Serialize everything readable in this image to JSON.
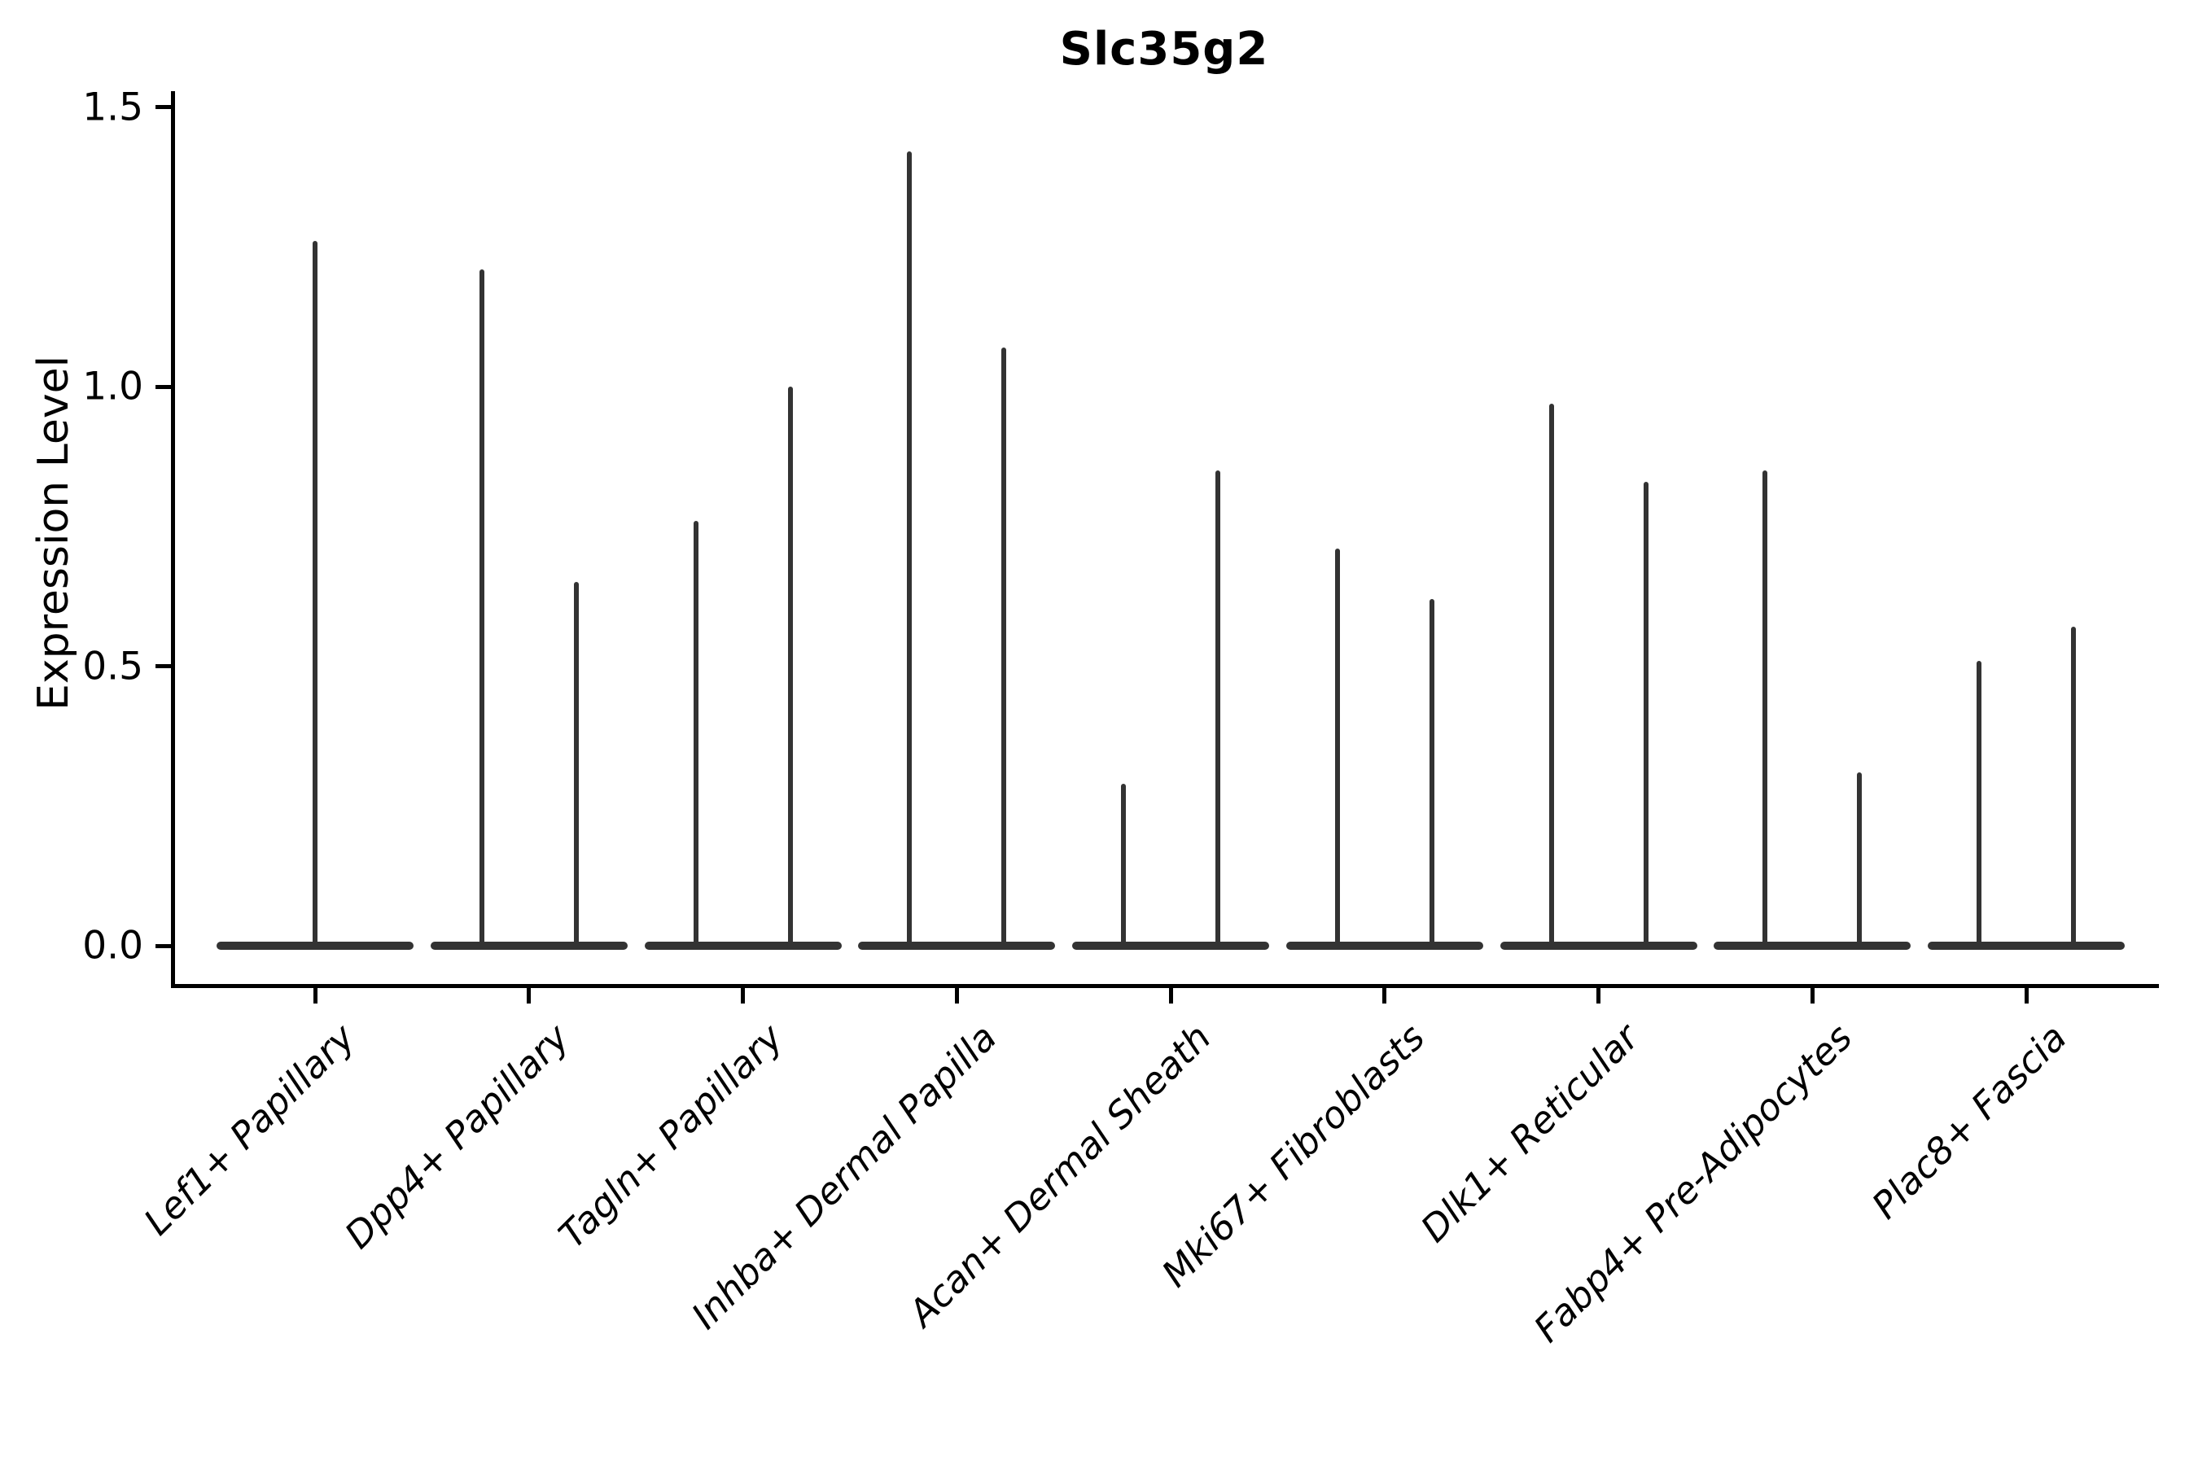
{
  "chart_data": {
    "type": "violin",
    "title": "Slc35g2",
    "xlabel": "",
    "ylabel": "Expression Level",
    "ylim": [
      0,
      1.5
    ],
    "yticks": [
      0.0,
      0.5,
      1.0,
      1.5
    ],
    "grid": false,
    "legend": "none",
    "violin_color": "#333333",
    "description": "Violin plot of Slc35g2 expression; each category shows narrow spike-shaped violins rising from a flat zero-expression base. First category has one centered violin; all others have two violins side by side.",
    "categories": [
      {
        "label": "Lef1+ Papillary",
        "violin_maxima": [
          1.26
        ]
      },
      {
        "label": "Dpp4+ Papillary",
        "violin_maxima": [
          1.21,
          0.65
        ]
      },
      {
        "label": "Tagln+ Papillary",
        "violin_maxima": [
          0.76,
          1.0
        ]
      },
      {
        "label": "Inhba+ Dermal Papilla",
        "violin_maxima": [
          1.42,
          1.07
        ]
      },
      {
        "label": "Acan+ Dermal Sheath",
        "violin_maxima": [
          0.29,
          0.85
        ]
      },
      {
        "label": "Mki67+ Fibroblasts",
        "violin_maxima": [
          0.71,
          0.62
        ]
      },
      {
        "label": "Dlk1+ Reticular",
        "violin_maxima": [
          0.97,
          0.83
        ]
      },
      {
        "label": "Fabp4+ Pre-Adipocytes",
        "violin_maxima": [
          0.85,
          0.31
        ]
      },
      {
        "label": "Plac8+ Fascia",
        "violin_maxima": [
          0.51,
          0.57
        ]
      }
    ]
  }
}
